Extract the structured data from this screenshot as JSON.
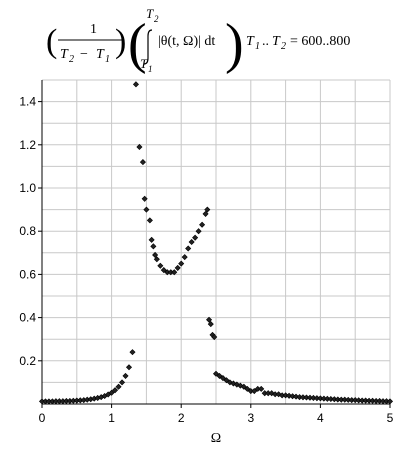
{
  "chart_data": {
    "type": "scatter",
    "title": {
      "frac_num": "1",
      "frac_den_t2": "T",
      "frac_den_sub2": "2",
      "frac_minus": "−",
      "frac_den_t1": "T",
      "frac_den_sub1": "1",
      "int_upper": "T",
      "int_upper_sub": "2",
      "int_lower": "T",
      "int_lower_sub": "1",
      "integrand": "|θ(t, Ω)| dt",
      "range_t1": "T",
      "range_t1_sub": "1",
      "range_dots": "..",
      "range_t2": "T",
      "range_t2_sub": "2",
      "range_value": "= 600..800"
    },
    "xlabel": "Ω",
    "ylabel": "",
    "xlim": [
      0,
      5
    ],
    "ylim": [
      0,
      1.5
    ],
    "grid": true,
    "x_ticks": [
      "0",
      "1",
      "2",
      "3",
      "4",
      "5"
    ],
    "y_ticks": [
      "0.2",
      "0.4",
      "0.6",
      "0.8",
      "1.0",
      "1.2",
      "1.4"
    ],
    "x": [
      0.0,
      0.05,
      0.1,
      0.15,
      0.2,
      0.25,
      0.3,
      0.35,
      0.4,
      0.45,
      0.5,
      0.55,
      0.6,
      0.65,
      0.7,
      0.75,
      0.8,
      0.85,
      0.9,
      0.95,
      1.0,
      1.05,
      1.1,
      1.15,
      1.2,
      1.25,
      1.3,
      1.35,
      1.4,
      1.45,
      1.475,
      1.5,
      1.55,
      1.575,
      1.6,
      1.625,
      1.65,
      1.7,
      1.75,
      1.8,
      1.85,
      1.9,
      1.95,
      2.0,
      2.05,
      2.1,
      2.15,
      2.2,
      2.25,
      2.3,
      2.35,
      2.375,
      2.4,
      2.425,
      2.45,
      2.475,
      2.5,
      2.55,
      2.6,
      2.65,
      2.7,
      2.75,
      2.8,
      2.85,
      2.9,
      2.95,
      3.0,
      3.05,
      3.1,
      3.15,
      3.2,
      3.25,
      3.3,
      3.35,
      3.4,
      3.45,
      3.5,
      3.55,
      3.6,
      3.65,
      3.7,
      3.75,
      3.8,
      3.85,
      3.9,
      3.95,
      4.0,
      4.05,
      4.1,
      4.15,
      4.2,
      4.25,
      4.3,
      4.35,
      4.4,
      4.45,
      4.5,
      4.55,
      4.6,
      4.65,
      4.7,
      4.75,
      4.8,
      4.85,
      4.9,
      4.95,
      5.0
    ],
    "y": [
      0.012,
      0.012,
      0.012,
      0.012,
      0.013,
      0.013,
      0.013,
      0.014,
      0.014,
      0.015,
      0.016,
      0.017,
      0.018,
      0.02,
      0.022,
      0.025,
      0.028,
      0.032,
      0.037,
      0.044,
      0.052,
      0.064,
      0.08,
      0.1,
      0.13,
      0.17,
      0.24,
      1.48,
      1.19,
      1.12,
      0.95,
      0.9,
      0.85,
      0.76,
      0.73,
      0.69,
      0.67,
      0.64,
      0.62,
      0.61,
      0.61,
      0.61,
      0.63,
      0.65,
      0.68,
      0.72,
      0.75,
      0.77,
      0.8,
      0.83,
      0.88,
      0.9,
      0.39,
      0.37,
      0.32,
      0.31,
      0.14,
      0.13,
      0.12,
      0.11,
      0.1,
      0.095,
      0.09,
      0.085,
      0.08,
      0.07,
      0.06,
      0.06,
      0.07,
      0.07,
      0.05,
      0.05,
      0.05,
      0.045,
      0.045,
      0.04,
      0.04,
      0.038,
      0.036,
      0.034,
      0.032,
      0.031,
      0.03,
      0.029,
      0.028,
      0.027,
      0.026,
      0.025,
      0.024,
      0.023,
      0.022,
      0.021,
      0.02,
      0.02,
      0.019,
      0.018,
      0.018,
      0.017,
      0.016,
      0.016,
      0.015,
      0.015,
      0.014,
      0.014,
      0.013,
      0.013,
      0.012
    ]
  }
}
